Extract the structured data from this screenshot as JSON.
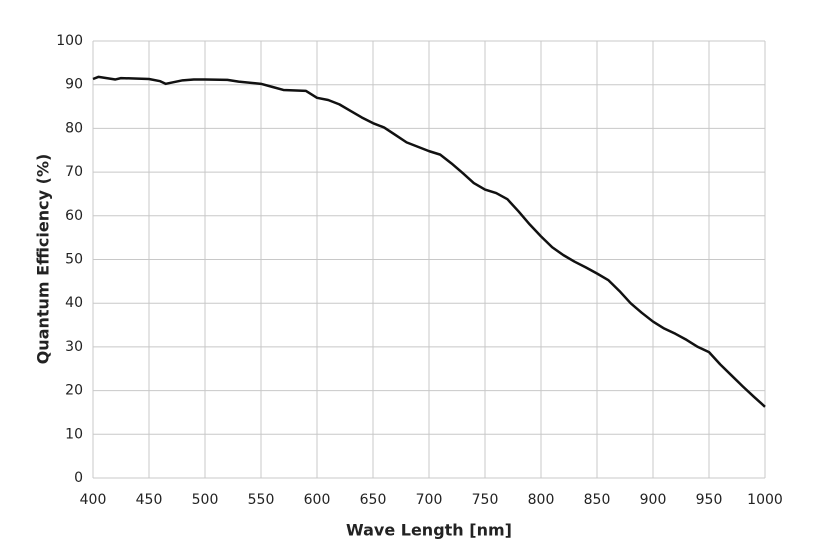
{
  "chart_data": {
    "type": "line",
    "x_label": "Wave Length [nm]",
    "y_label": "Quantum Efficiency (%)",
    "x": [
      400,
      405,
      420,
      425,
      440,
      450,
      460,
      465,
      480,
      490,
      500,
      520,
      530,
      550,
      560,
      570,
      590,
      600,
      610,
      620,
      630,
      640,
      650,
      660,
      670,
      680,
      690,
      700,
      710,
      720,
      730,
      740,
      750,
      760,
      770,
      780,
      790,
      800,
      810,
      820,
      830,
      840,
      850,
      860,
      870,
      880,
      890,
      900,
      910,
      920,
      930,
      940,
      950,
      960,
      970,
      980,
      990,
      1000
    ],
    "series": [
      {
        "color": "#111111",
        "values": [
          91.3,
          91.8,
          91.2,
          91.5,
          91.4,
          91.3,
          90.8,
          90.2,
          91.0,
          91.2,
          91.2,
          91.1,
          90.7,
          90.2,
          89.5,
          88.8,
          88.6,
          87.0,
          86.5,
          85.5,
          84.0,
          82.5,
          81.2,
          80.2,
          78.5,
          76.8,
          75.8,
          74.8,
          74.0,
          72.0,
          69.8,
          67.5,
          66.0,
          65.2,
          63.8,
          61.0,
          58.0,
          55.3,
          52.8,
          51.0,
          49.5,
          48.2,
          46.8,
          45.3,
          42.8,
          40.0,
          37.8,
          35.8,
          34.2,
          33.0,
          31.6,
          30.0,
          28.8,
          26.0,
          23.5,
          21.0,
          18.6,
          16.3
        ]
      }
    ],
    "xlim": [
      400,
      1000
    ],
    "xticks": [
      400,
      450,
      500,
      550,
      600,
      650,
      700,
      750,
      800,
      850,
      900,
      950,
      1000
    ],
    "ylim": [
      0,
      100
    ],
    "yticks": [
      0,
      10,
      20,
      30,
      40,
      50,
      60,
      70,
      80,
      90,
      100
    ],
    "grid": true
  }
}
